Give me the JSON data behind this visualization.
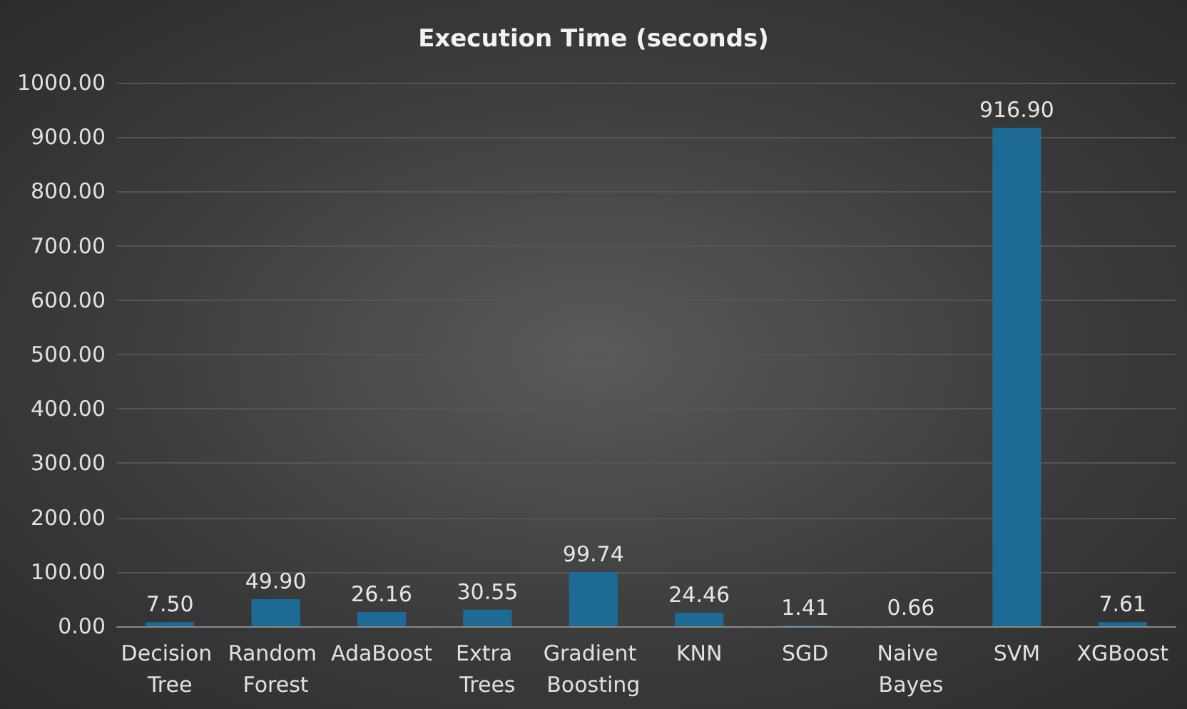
{
  "chart_data": {
    "type": "bar",
    "title": "Execution Time (seconds)",
    "categories": [
      "Decision Tree",
      "Random Forest",
      "AdaBoost",
      "Extra Trees",
      "Gradient Boosting",
      "KNN",
      "SGD",
      "Naive Bayes",
      "SVM",
      "XGBoost"
    ],
    "values": [
      7.5,
      49.9,
      26.16,
      30.55,
      99.74,
      24.46,
      1.41,
      0.66,
      916.9,
      7.61
    ],
    "value_labels": [
      "7.50",
      "49.90",
      "26.16",
      "30.55",
      "99.74",
      "24.46",
      "1.41",
      "0.66",
      "916.90",
      "7.61"
    ],
    "color": "#1d6a94",
    "ylim": [
      0,
      1000
    ],
    "yticks": [
      {
        "value": 0,
        "label": "0.00"
      },
      {
        "value": 100,
        "label": "100.00"
      },
      {
        "value": 200,
        "label": "200.00"
      },
      {
        "value": 300,
        "label": "300.00"
      },
      {
        "value": 400,
        "label": "400.00"
      },
      {
        "value": 500,
        "label": "500.00"
      },
      {
        "value": 600,
        "label": "600.00"
      },
      {
        "value": 700,
        "label": "700.00"
      },
      {
        "value": 800,
        "label": "800.00"
      },
      {
        "value": 900,
        "label": "900.00"
      },
      {
        "value": 1000,
        "label": "1000.00"
      }
    ],
    "grid": true
  }
}
